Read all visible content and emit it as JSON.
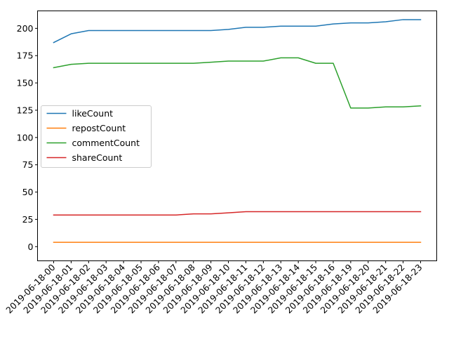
{
  "chart_data": {
    "type": "line",
    "title": "",
    "xlabel": "",
    "ylabel": "",
    "x": [
      "2019-06-18-00",
      "2019-06-18-01",
      "2019-06-18-02",
      "2019-06-18-03",
      "2019-06-18-04",
      "2019-06-18-05",
      "2019-06-18-06",
      "2019-06-18-07",
      "2019-06-18-08",
      "2019-06-18-09",
      "2019-06-18-10",
      "2019-06-18-11",
      "2019-06-18-12",
      "2019-06-18-13",
      "2019-06-18-14",
      "2019-06-18-15",
      "2019-06-18-16",
      "2019-06-18-19",
      "2019-06-18-20",
      "2019-06-18-21",
      "2019-06-18-22",
      "2019-06-18-23"
    ],
    "ylim": [
      -13,
      216
    ],
    "yticks": [
      0,
      25,
      50,
      75,
      100,
      125,
      150,
      175,
      200
    ],
    "grid": false,
    "legend_position": "center-left",
    "series": [
      {
        "name": "likeCount",
        "color": "#1f77b4",
        "values": [
          187,
          195,
          198,
          198,
          198,
          198,
          198,
          198,
          198,
          198,
          199,
          201,
          201,
          202,
          202,
          202,
          204,
          205,
          205,
          206,
          208,
          208
        ]
      },
      {
        "name": "repostCount",
        "color": "#ff7f0e",
        "values": [
          4,
          4,
          4,
          4,
          4,
          4,
          4,
          4,
          4,
          4,
          4,
          4,
          4,
          4,
          4,
          4,
          4,
          4,
          4,
          4,
          4,
          4
        ]
      },
      {
        "name": "commentCount",
        "color": "#2ca02c",
        "values": [
          164,
          167,
          168,
          168,
          168,
          168,
          168,
          168,
          168,
          169,
          170,
          170,
          170,
          173,
          173,
          168,
          168,
          127,
          127,
          128,
          128,
          129
        ]
      },
      {
        "name": "shareCount",
        "color": "#d62728",
        "values": [
          29,
          29,
          29,
          29,
          29,
          29,
          29,
          29,
          30,
          30,
          31,
          32,
          32,
          32,
          32,
          32,
          32,
          32,
          32,
          32,
          32,
          32
        ]
      }
    ]
  }
}
